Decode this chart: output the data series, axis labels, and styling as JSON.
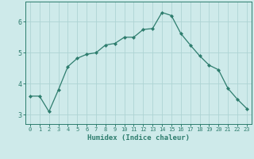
{
  "x": [
    0,
    1,
    2,
    3,
    4,
    5,
    6,
    7,
    8,
    9,
    10,
    11,
    12,
    13,
    14,
    15,
    16,
    17,
    18,
    19,
    20,
    21,
    22,
    23
  ],
  "y": [
    3.6,
    3.6,
    3.1,
    3.8,
    4.55,
    4.82,
    4.95,
    5.0,
    5.25,
    5.3,
    5.5,
    5.5,
    5.75,
    5.78,
    6.3,
    6.2,
    5.62,
    5.25,
    4.9,
    4.6,
    4.45,
    3.85,
    3.5,
    3.2
  ],
  "line_color": "#2e7d6e",
  "marker": "D",
  "marker_size": 2.0,
  "bg_color": "#ceeaea",
  "grid_color": "#aed4d4",
  "axis_color": "#2e7d6e",
  "xlabel": "Humidex (Indice chaleur)",
  "xlabel_fontsize": 6.5,
  "xlim": [
    -0.5,
    23.5
  ],
  "ylim": [
    2.7,
    6.65
  ],
  "yticks": [
    3,
    4,
    5,
    6
  ],
  "xticks": [
    0,
    1,
    2,
    3,
    4,
    5,
    6,
    7,
    8,
    9,
    10,
    11,
    12,
    13,
    14,
    15,
    16,
    17,
    18,
    19,
    20,
    21,
    22,
    23
  ],
  "tick_fontsize": 5.0,
  "ytick_fontsize": 6.0
}
